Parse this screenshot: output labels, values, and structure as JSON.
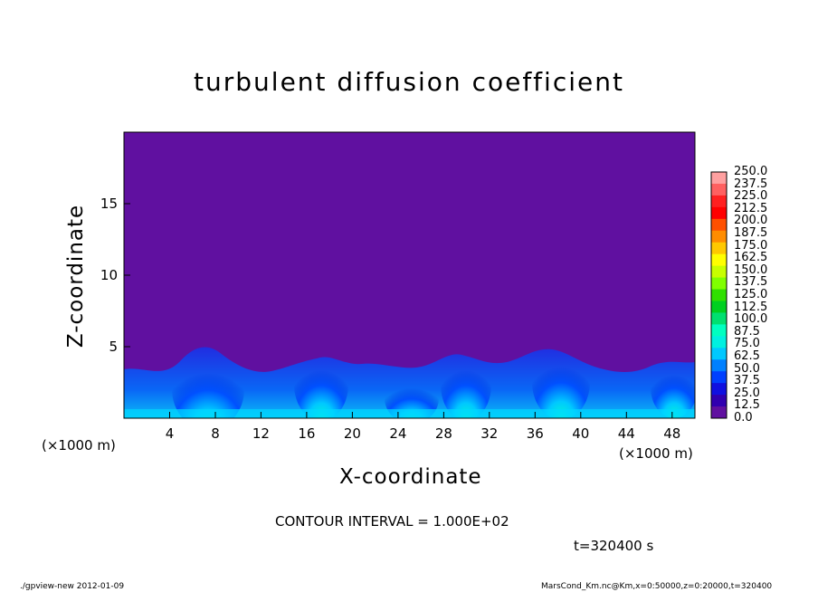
{
  "chart_data": {
    "type": "heatmap",
    "title": "turbulent diffusion coefficient",
    "xlabel": "X-coordinate",
    "ylabel": "Z-coordinate",
    "x_unit_label_left": "(×1000 m)",
    "x_unit_label_right": "(×1000 m)",
    "x_ticks": [
      4,
      8,
      12,
      16,
      20,
      24,
      28,
      32,
      36,
      40,
      44,
      48
    ],
    "y_ticks": [
      5,
      10,
      15
    ],
    "xlim": [
      0,
      50
    ],
    "ylim": [
      0,
      20
    ],
    "colorbar_levels": [
      "250.0",
      "237.5",
      "225.0",
      "212.5",
      "200.0",
      "187.5",
      "175.0",
      "162.5",
      "150.0",
      "137.5",
      "125.0",
      "112.5",
      "100.0",
      "87.5",
      "75.0",
      "62.5",
      "50.0",
      "37.5",
      "25.0",
      "12.5",
      "0.0"
    ],
    "colorbar_colors": [
      "#ffa0a0",
      "#ff6060",
      "#ff2020",
      "#ff0000",
      "#ff5000",
      "#ff8c00",
      "#ffc800",
      "#ffff00",
      "#c8ff00",
      "#80ff00",
      "#30e000",
      "#00d020",
      "#00e070",
      "#00ffc0",
      "#00f0e0",
      "#00c8ff",
      "#0080ff",
      "#0040ff",
      "#1010e0",
      "#3000b0",
      "#6010a0"
    ],
    "background_color": "#6010a0",
    "contour_interval": "CONTOUR INTERVAL = 1.000E+02",
    "time_label": "t=320400 s"
  },
  "footer": {
    "left": "./gpview-new 2012-01-09",
    "right": "MarsCond_Km.nc@Km,x=0:50000,z=0:20000,t=320400"
  }
}
